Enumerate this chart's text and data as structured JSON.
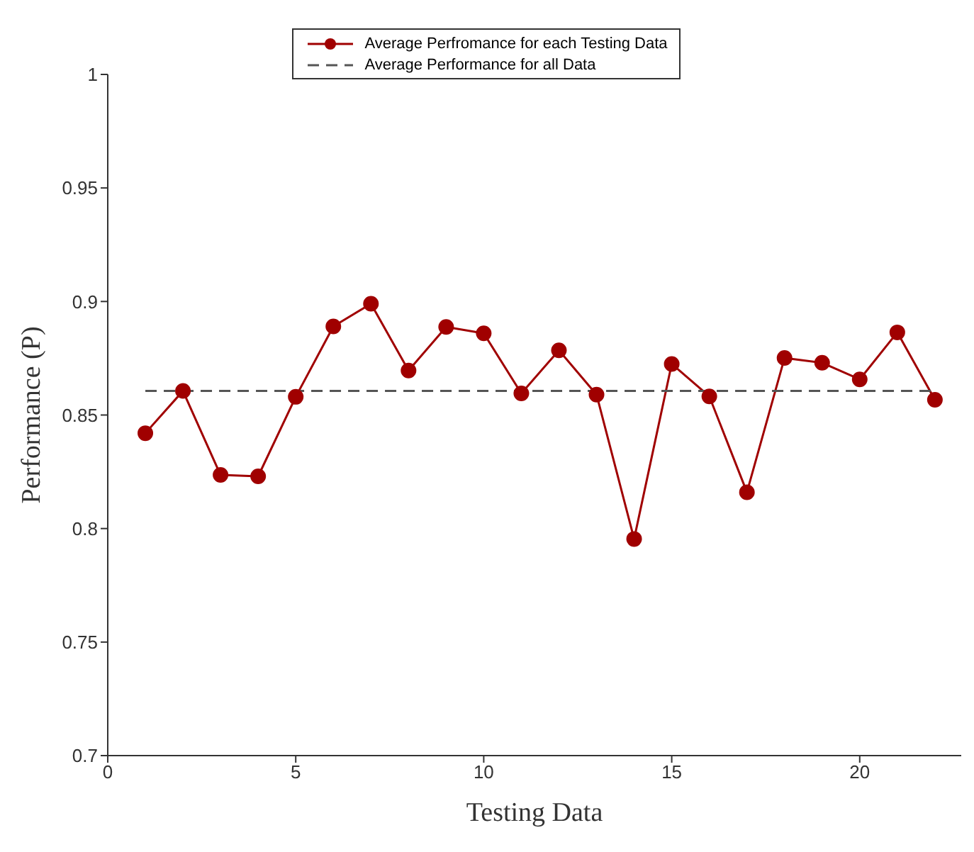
{
  "chart_data": {
    "type": "line",
    "xlabel": "Testing Data",
    "ylabel": "Performance (P)",
    "x": [
      1,
      2,
      3,
      4,
      5,
      6,
      7,
      8,
      9,
      10,
      11,
      12,
      13,
      14,
      15,
      16,
      17,
      18,
      19,
      20,
      21,
      22
    ],
    "series": [
      {
        "name": "Average Perfromance for each Testing Data",
        "color": "#a00000",
        "marker": "circle",
        "line_style": "solid",
        "values": [
          0.842,
          0.8606,
          0.8236,
          0.823,
          0.858,
          0.889,
          0.899,
          0.8696,
          0.8888,
          0.886,
          0.8595,
          0.8785,
          0.859,
          0.7954,
          0.8725,
          0.8582,
          0.816,
          0.8751,
          0.873,
          0.8657,
          0.8864,
          0.8567
        ]
      },
      {
        "name": "Average Performance for all Data",
        "color": "#555555",
        "marker": "none",
        "line_style": "dashed",
        "x": [
          1,
          22
        ],
        "values": [
          0.8606,
          0.8606
        ]
      }
    ],
    "xlim": [
      0,
      22.7
    ],
    "xticks": [
      0,
      5,
      10,
      15,
      20
    ],
    "ylim": [
      0.7,
      1
    ],
    "yticks": [
      0.7,
      0.75,
      0.8,
      0.85,
      0.9,
      0.95,
      1
    ],
    "legend": "top"
  }
}
